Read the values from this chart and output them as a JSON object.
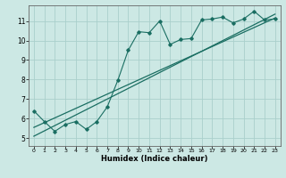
{
  "xlabel": "Humidex (Indice chaleur)",
  "ylabel": "",
  "bg_color": "#cce8e4",
  "line_color": "#1a6e62",
  "grid_color": "#aacfcb",
  "xlim": [
    -0.5,
    23.5
  ],
  "ylim": [
    4.6,
    11.8
  ],
  "xticks": [
    0,
    1,
    2,
    3,
    4,
    5,
    6,
    7,
    8,
    9,
    10,
    11,
    12,
    13,
    14,
    15,
    16,
    17,
    18,
    19,
    20,
    21,
    22,
    23
  ],
  "yticks": [
    5,
    6,
    7,
    8,
    9,
    10,
    11
  ],
  "humidex_x": [
    0,
    1,
    2,
    3,
    4,
    5,
    6,
    7,
    8,
    9,
    10,
    11,
    12,
    13,
    14,
    15,
    16,
    17,
    18,
    19,
    20,
    21,
    22,
    23
  ],
  "humidex_y": [
    6.4,
    5.85,
    5.35,
    5.7,
    5.85,
    5.45,
    5.85,
    6.6,
    7.95,
    9.5,
    10.45,
    10.4,
    11.0,
    9.8,
    10.05,
    10.1,
    11.05,
    11.1,
    11.2,
    10.9,
    11.1,
    11.5,
    11.05,
    11.1
  ],
  "line1_x": [
    0,
    23
  ],
  "line1_y": [
    5.55,
    11.15
  ],
  "line2_x": [
    0,
    23
  ],
  "line2_y": [
    5.1,
    11.35
  ]
}
